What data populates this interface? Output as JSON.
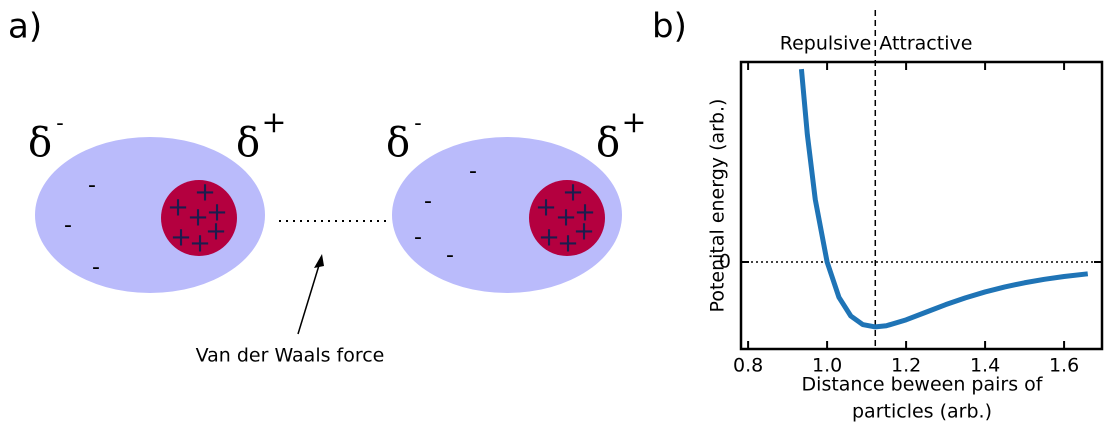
{
  "panel_a": {
    "label": "a)",
    "delta": "δ",
    "minus": "-",
    "plus": "+",
    "force_label": "Van der Waals force"
  },
  "chart_data": {
    "type": "line",
    "panel_label": "b)",
    "x_label_lines": [
      "Distance beween pairs of",
      "particles (arb.)"
    ],
    "y_label": "Potenital energy (arb.)",
    "region_labels": [
      "Repulsive",
      "Attractive"
    ],
    "x": [
      0.935,
      0.95,
      0.97,
      1.0,
      1.03,
      1.06,
      1.09,
      1.122,
      1.15,
      1.2,
      1.25,
      1.3,
      1.35,
      1.4,
      1.45,
      1.5,
      1.55,
      1.6,
      1.66
    ],
    "series": [
      {
        "color": "#1f74b6",
        "values": [
          2.97,
          1.96,
          0.963,
          0,
          -0.544,
          -0.832,
          -0.963,
          -1.0,
          -0.982,
          -0.891,
          -0.774,
          -0.657,
          -0.552,
          -0.461,
          -0.384,
          -0.32,
          -0.267,
          -0.224,
          -0.182
        ]
      }
    ],
    "xlim": [
      0.782,
      1.696
    ],
    "ylim": [
      -1.34,
      3.08
    ],
    "xticks": [
      0.8,
      {
        "value": 1,
        "label": "1.0"
      },
      1.2,
      1.4,
      1.6
    ],
    "yticks": [
      0
    ],
    "vline": 1.122,
    "hline": 0
  }
}
